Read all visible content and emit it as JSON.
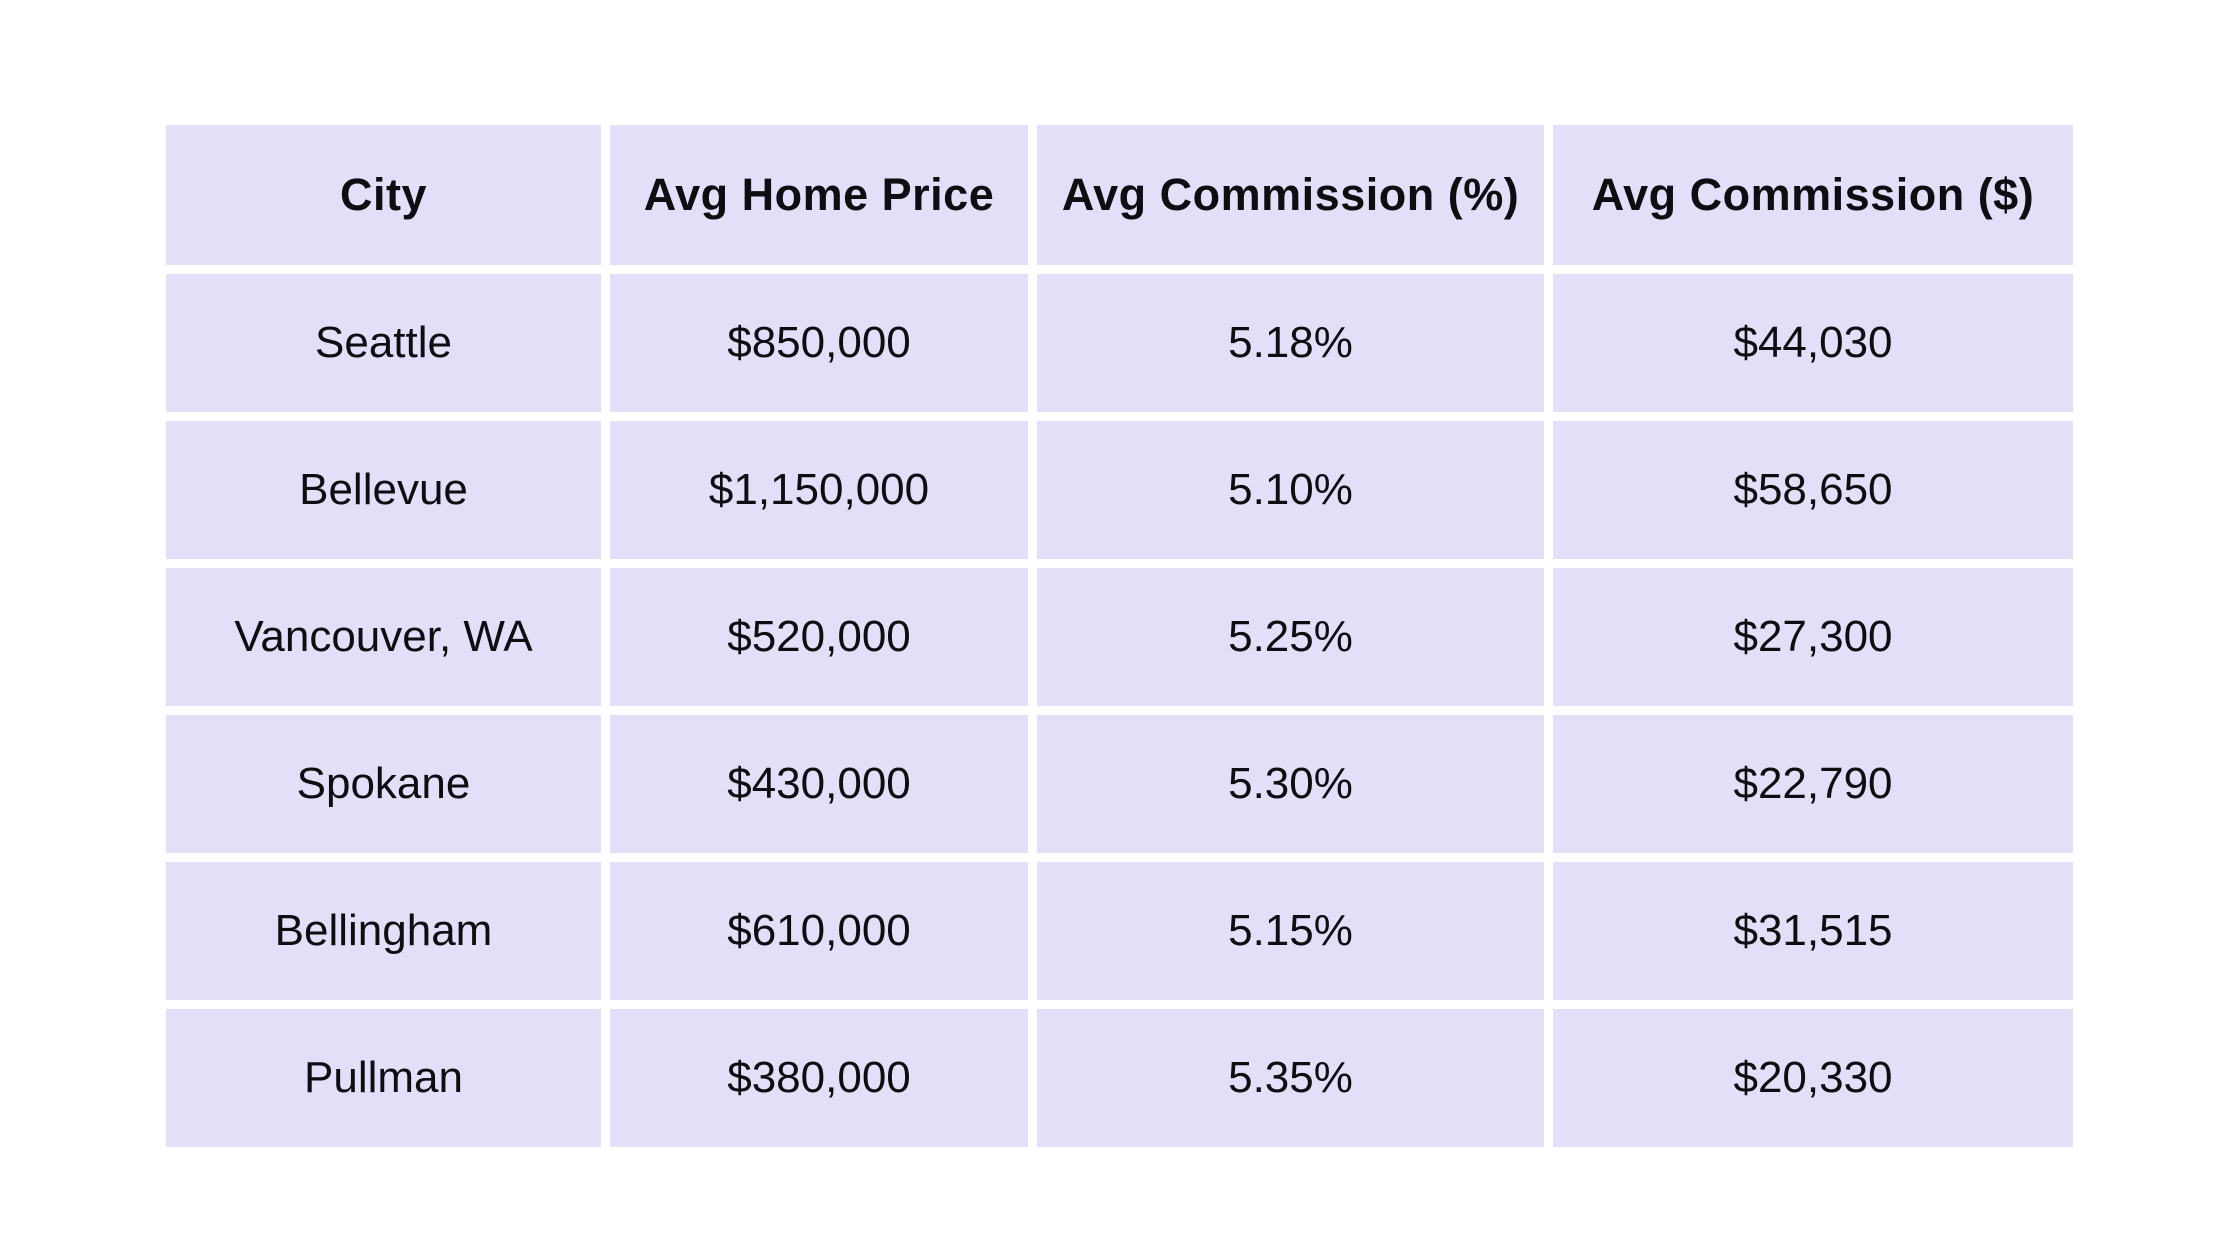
{
  "colors": {
    "page_bg": "#ffffff",
    "cell_bg": "#e1e0f8",
    "text": "#0d0d12"
  },
  "chart_data": {
    "type": "table",
    "columns": [
      "City",
      "Avg Home Price",
      "Avg Commission (%)",
      "Avg Commission ($)"
    ],
    "rows": [
      [
        "Seattle",
        "$850,000",
        "5.18%",
        "$44,030"
      ],
      [
        "Bellevue",
        "$1,150,000",
        "5.10%",
        "$58,650"
      ],
      [
        "Vancouver, WA",
        "$520,000",
        "5.25%",
        "$27,300"
      ],
      [
        "Spokane",
        "$430,000",
        "5.30%",
        "$22,790"
      ],
      [
        "Bellingham",
        "$610,000",
        "5.15%",
        "$31,515"
      ],
      [
        "Pullman",
        "$380,000",
        "5.35%",
        "$20,330"
      ]
    ],
    "numeric_rows": [
      {
        "city": "Seattle",
        "avg_home_price_usd": 850000,
        "avg_commission_pct": 5.18,
        "avg_commission_usd": 44030
      },
      {
        "city": "Bellevue",
        "avg_home_price_usd": 1150000,
        "avg_commission_pct": 5.1,
        "avg_commission_usd": 58650
      },
      {
        "city": "Vancouver, WA",
        "avg_home_price_usd": 520000,
        "avg_commission_pct": 5.25,
        "avg_commission_usd": 27300
      },
      {
        "city": "Spokane",
        "avg_home_price_usd": 430000,
        "avg_commission_pct": 5.3,
        "avg_commission_usd": 22790
      },
      {
        "city": "Bellingham",
        "avg_home_price_usd": 610000,
        "avg_commission_pct": 5.15,
        "avg_commission_usd": 31515
      },
      {
        "city": "Pullman",
        "avg_home_price_usd": 380000,
        "avg_commission_pct": 5.35,
        "avg_commission_usd": 20330
      }
    ]
  }
}
